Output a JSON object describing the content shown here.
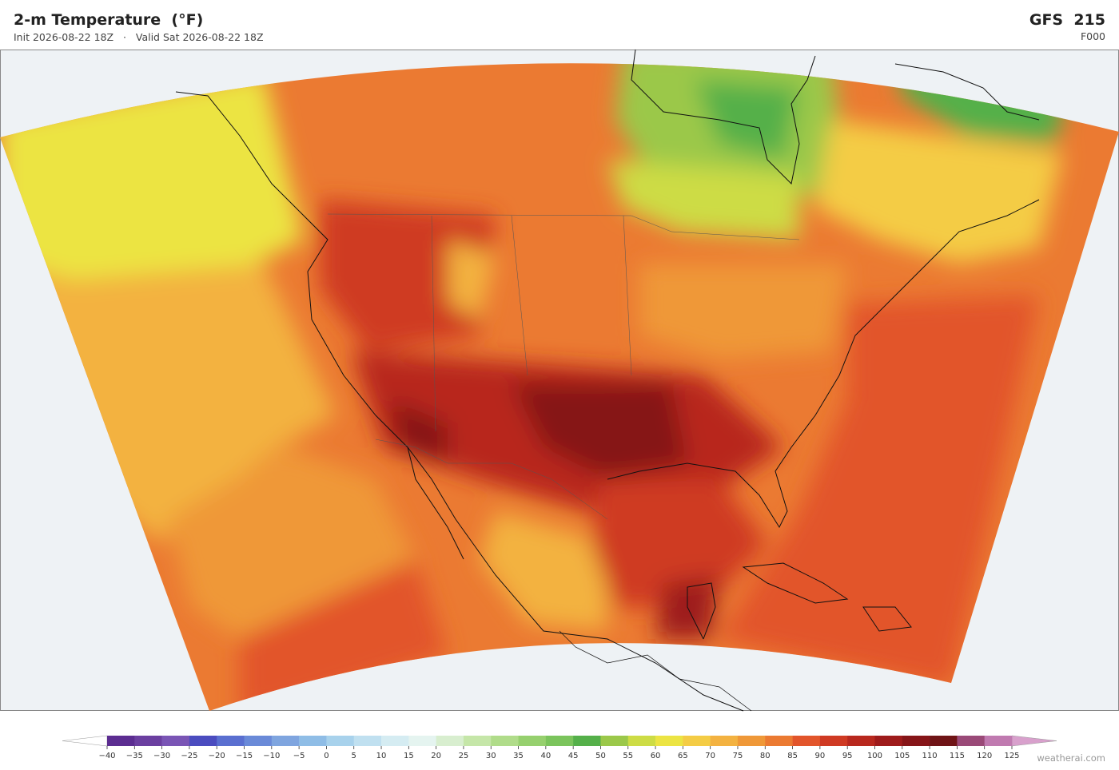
{
  "header": {
    "title": "2-m Temperature  (°F)",
    "init": "Init 2026-08-22 18Z",
    "separator": "·",
    "valid": "Valid Sat 2026-08-22 18Z",
    "model": "GFS  215",
    "forecast_hour": "F000"
  },
  "colorbar": {
    "ticks": [
      {
        "value": -40,
        "label": "−40"
      },
      {
        "value": -35,
        "label": "−35"
      },
      {
        "value": -30,
        "label": "−30"
      },
      {
        "value": -25,
        "label": "−25"
      },
      {
        "value": -20,
        "label": "−20"
      },
      {
        "value": -15,
        "label": "−15"
      },
      {
        "value": -10,
        "label": "−10"
      },
      {
        "value": -5,
        "label": "−5"
      },
      0,
      5,
      10,
      15,
      20,
      25,
      30,
      35,
      40,
      45,
      50,
      55,
      60,
      65,
      70,
      75,
      80,
      85,
      90,
      95,
      100,
      105,
      110,
      115,
      120,
      125
    ],
    "colors": [
      "#5c2d91",
      "#6b3fa0",
      "#7a55b5",
      "#4b4cbf",
      "#5a6fd0",
      "#6a8ad8",
      "#7fa5df",
      "#8fbde6",
      "#a8d2ec",
      "#c0e0f0",
      "#d5ecf2",
      "#e5f4f0",
      "#d8eecf",
      "#c5e6a8",
      "#b0dc8a",
      "#96d06e",
      "#7bc45c",
      "#55b04a",
      "#9bc84a",
      "#cddc45",
      "#ece443",
      "#f4cc45",
      "#f3b241",
      "#ef9838",
      "#eb7a32",
      "#e2552b",
      "#cf3a23",
      "#b8281e",
      "#9e1b1b",
      "#861518",
      "#6f1416",
      "#9a4a78",
      "#c07ab0"
    ],
    "under_color": "#ffffff",
    "over_color": "#d8a0cc"
  },
  "footer": {
    "credit": "weatherai.com"
  }
}
